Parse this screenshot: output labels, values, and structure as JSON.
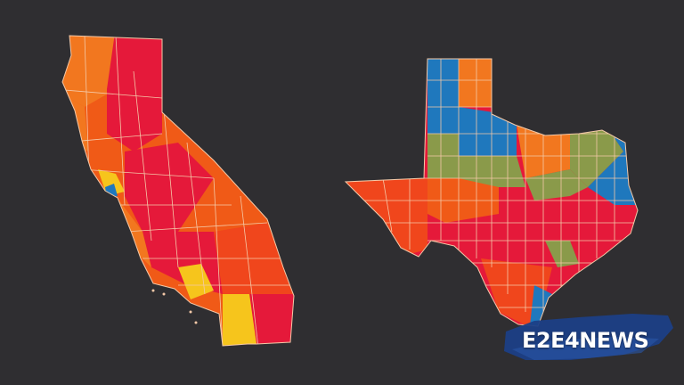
{
  "map": {
    "colors": {
      "background": "#2f2e31",
      "red": "#e5193a",
      "orange_red": "#f0461c",
      "orange": "#f2771f",
      "deep_orange": "#f05a17",
      "yellow": "#f6c51c",
      "blue": "#1f78bd",
      "olive": "#8a9a4a",
      "border": "#f4c9a8"
    },
    "states": [
      {
        "name": "california",
        "icon": "california-state-shape"
      },
      {
        "name": "texas",
        "icon": "texas-state-shape"
      }
    ]
  },
  "logo": {
    "text": "E2E4NEWS",
    "brush_color": "#1c3f86"
  }
}
